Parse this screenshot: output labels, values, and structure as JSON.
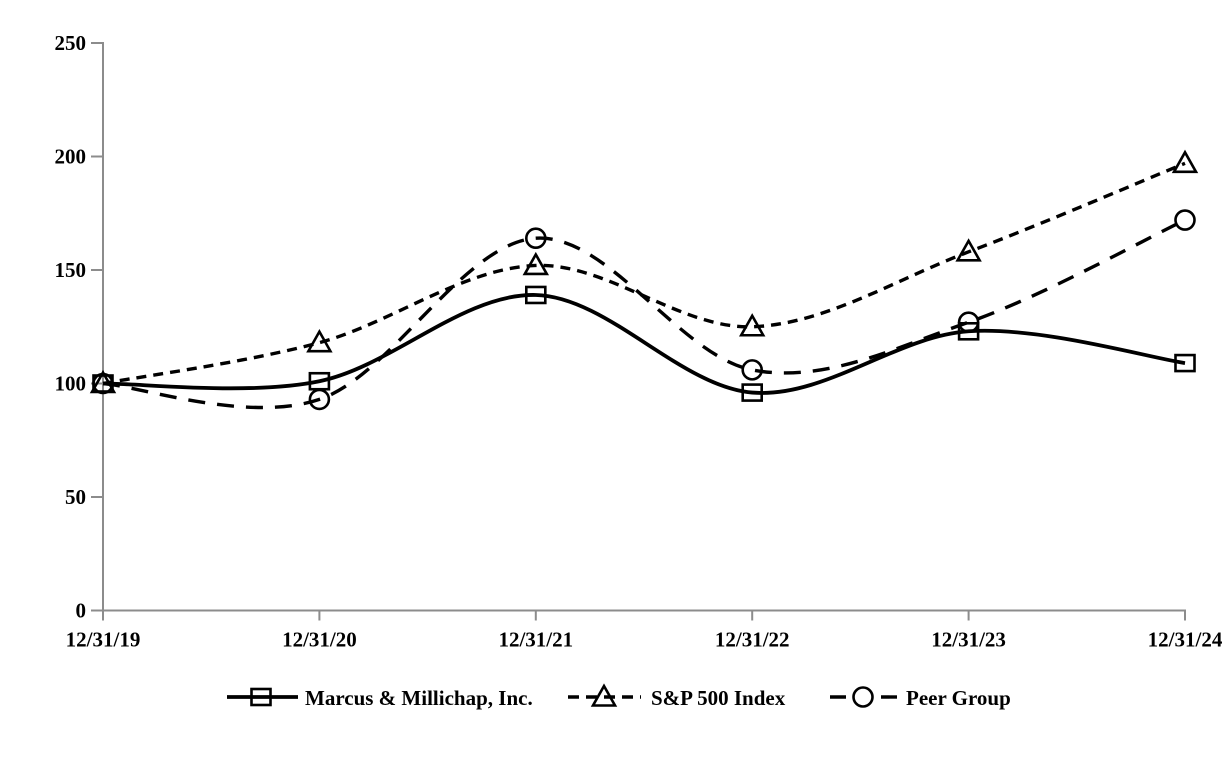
{
  "chart_data": {
    "type": "line",
    "title": "",
    "xlabel": "",
    "ylabel": "",
    "x_tick_labels": [
      "12/31/19",
      "12/31/20",
      "12/31/21",
      "12/31/22",
      "12/31/23",
      "12/31/24"
    ],
    "y_ticks": [
      0,
      50,
      100,
      150,
      200,
      250
    ],
    "ylim": [
      0,
      250
    ],
    "grid": false,
    "legend_position": "bottom",
    "background_color": "#ffffff",
    "axis_color": "#8c8c8c",
    "text_color": "#000000",
    "series": [
      {
        "name": "Marcus & Millichap, Inc.",
        "marker": "square",
        "line_style": "solid",
        "color": "#000000",
        "values": [
          100,
          101,
          139,
          96,
          123,
          109
        ]
      },
      {
        "name": "S&P 500 Index",
        "marker": "triangle",
        "line_style": "dashed-short",
        "color": "#000000",
        "values": [
          100,
          118,
          152,
          125,
          158,
          197
        ]
      },
      {
        "name": "Peer Group",
        "marker": "circle",
        "line_style": "dashed-long",
        "color": "#000000",
        "values": [
          100,
          93,
          164,
          106,
          127,
          172
        ]
      }
    ]
  }
}
